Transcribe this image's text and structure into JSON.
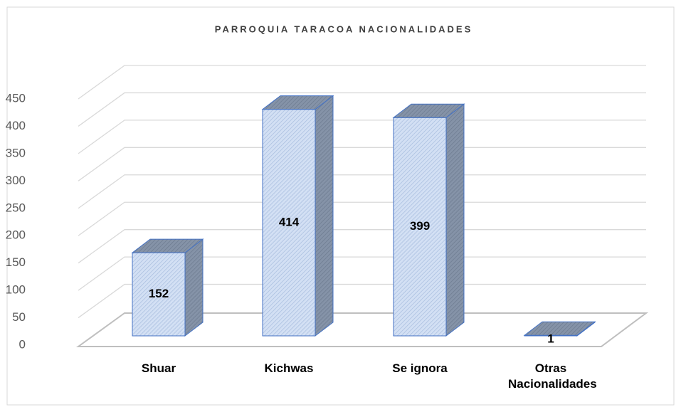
{
  "chart_data": {
    "type": "bar3d",
    "title": "PARROQUIA TARACOA NACIONALIDADES",
    "categories": [
      "Shuar",
      "Kichwas",
      "Se ignora",
      "Otras Nacionalidades"
    ],
    "values": [
      152,
      414,
      399,
      1
    ],
    "color": "#c9d8f0",
    "ylim": [
      0,
      450
    ],
    "yticks": [
      0,
      50,
      100,
      150,
      200,
      250,
      300,
      350,
      400,
      450
    ],
    "grid": true
  }
}
